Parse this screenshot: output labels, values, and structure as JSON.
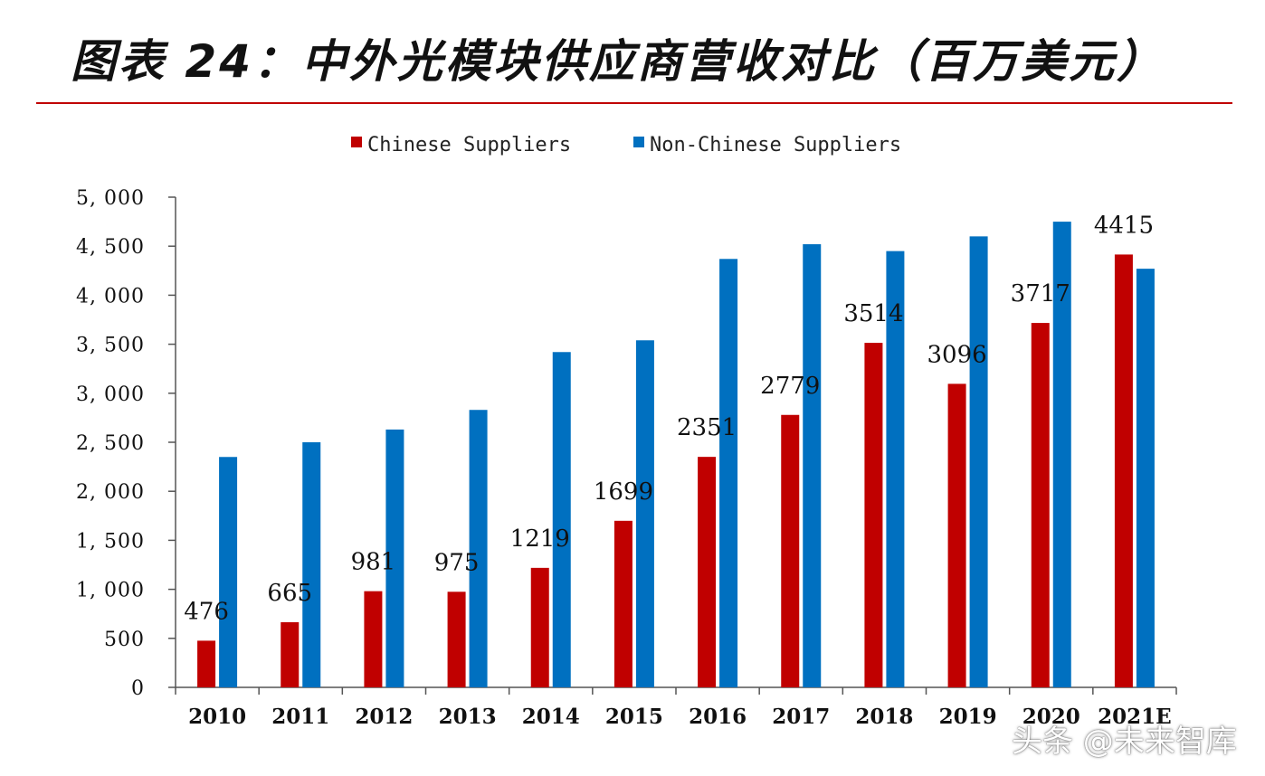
{
  "title": "图表 24：中外光模块供应商营收对比（百万美元）",
  "watermark": "头条 @未来智库",
  "colors": {
    "chinese": "#c00000",
    "non_chinese": "#0070c0",
    "axis": "#555555",
    "title_rule": "#c00000"
  },
  "chart_data": {
    "type": "bar",
    "title": "图表 24：中外光模块供应商营收对比（百万美元）",
    "categories": [
      "2010",
      "2011",
      "2012",
      "2013",
      "2014",
      "2015",
      "2016",
      "2017",
      "2018",
      "2019",
      "2020",
      "2021E"
    ],
    "series": [
      {
        "name": "Chinese Suppliers",
        "color": "#c00000",
        "values": [
          476,
          665,
          981,
          975,
          1219,
          1699,
          2351,
          2779,
          3514,
          3096,
          3717,
          4415
        ],
        "labels": [
          "476",
          "665",
          "981",
          "975",
          "1219",
          "1699",
          "2351",
          "2779",
          "3514",
          "3096",
          "3717",
          "4415"
        ]
      },
      {
        "name": "Non-Chinese Suppliers",
        "color": "#0070c0",
        "values": [
          2350,
          2500,
          2630,
          2830,
          3420,
          3540,
          4370,
          4520,
          4450,
          4600,
          4750,
          4270
        ]
      }
    ],
    "ylim": [
      0,
      5000
    ],
    "yticks": [
      0,
      500,
      1000,
      1500,
      2000,
      2500,
      3000,
      3500,
      4000,
      4500,
      5000
    ],
    "ytick_labels": [
      "0",
      "500",
      "1, 000",
      "1, 500",
      "2, 000",
      "2, 500",
      "3, 000",
      "3, 500",
      "4, 000",
      "4, 500",
      "5, 000"
    ],
    "legend": "top-center",
    "grid": false
  }
}
